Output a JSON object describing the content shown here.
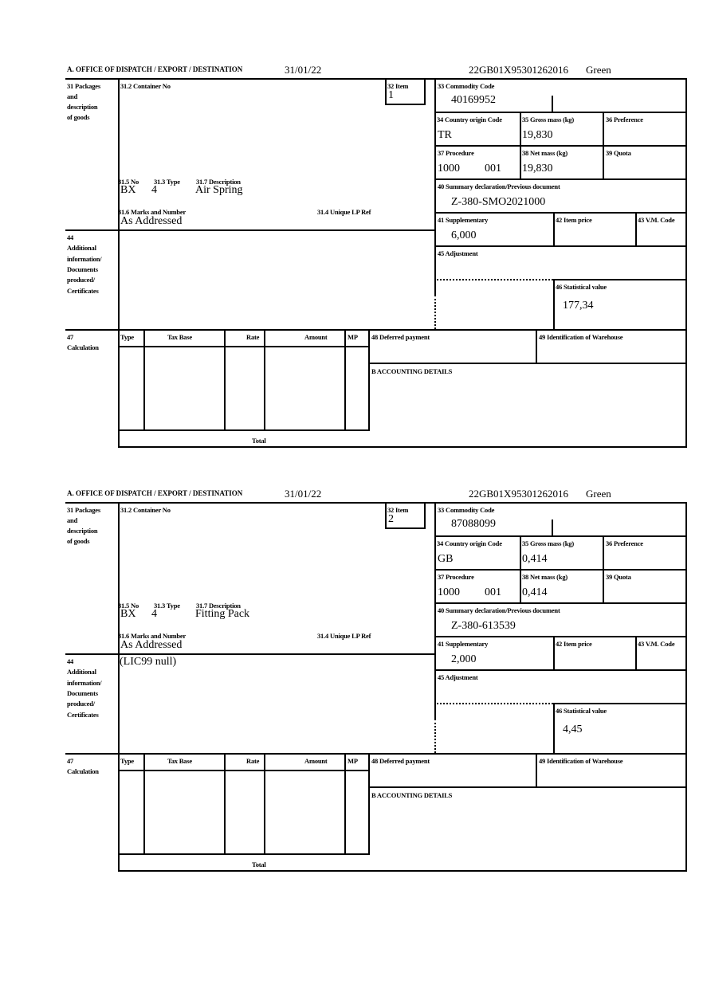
{
  "labels": {
    "office": "A.  OFFICE OF DISPATCH / EXPORT / DESTINATION",
    "box31": [
      "31 Packages",
      "and",
      "description",
      "of goods"
    ],
    "box31_2": "31.2 Container No",
    "box32": "32 Item",
    "box31_5": "31.5 No",
    "box31_3": "31.3 Type",
    "box31_7": "31.7 Description",
    "box31_6": "31.6 Marks and Number",
    "box31_4": "31.4 Unique LP Ref",
    "box33": "33 Commodity Code",
    "box34": "34 Country origin Code",
    "box35": "35 Gross mass (kg)",
    "box36": "36 Preference",
    "box37": "37 Procedure",
    "box38": "38 Net mass (kg)",
    "box39": "39 Quota",
    "box40": "40 Summary declaration/Previous document",
    "box41": "41 Supplementary",
    "box42": "42 Item price",
    "box43": "43 V.M. Code",
    "box45": "45 Adjustment",
    "box46": "46 Statistical value",
    "box44": [
      "44",
      "Additional",
      "information/",
      "Documents",
      "produced/",
      "Certificates"
    ],
    "box47": [
      "47",
      "Calculation"
    ],
    "calc_headers": [
      "Type",
      "Tax Base",
      "Rate",
      "Amount",
      "MP"
    ],
    "total": "Total",
    "box48": "48 Deferred payment",
    "box49": "49 Identification of Warehouse",
    "accounting": "B ACCOUNTING DETAILS"
  },
  "forms": [
    {
      "date": "31/01/22",
      "reference": "22GB01X95301262016",
      "route": "Green",
      "item": "1",
      "no": "BX",
      "type": "4",
      "description": "Air Spring",
      "marks": "As Addressed",
      "additional_info": "",
      "commodity_code": "40169952",
      "country_origin": "TR",
      "gross_mass": "19,830",
      "procedure": "1000",
      "procedure_extra": "001",
      "net_mass": "19,830",
      "previous_document": "Z-380-SMO2021000",
      "supplementary": "6,000",
      "statistical_value": "177,34"
    },
    {
      "date": "31/01/22",
      "reference": "22GB01X95301262016",
      "route": "Green",
      "item": "2",
      "no": "BX",
      "type": "4",
      "description": "Fitting Pack",
      "marks": "As Addressed",
      "additional_info": "(LIC99 null)",
      "commodity_code": "87088099",
      "country_origin": "GB",
      "gross_mass": "0,414",
      "procedure": "1000",
      "procedure_extra": "001",
      "net_mass": "0,414",
      "previous_document": "Z-380-613539",
      "supplementary": "2,000",
      "statistical_value": "4,45"
    }
  ]
}
